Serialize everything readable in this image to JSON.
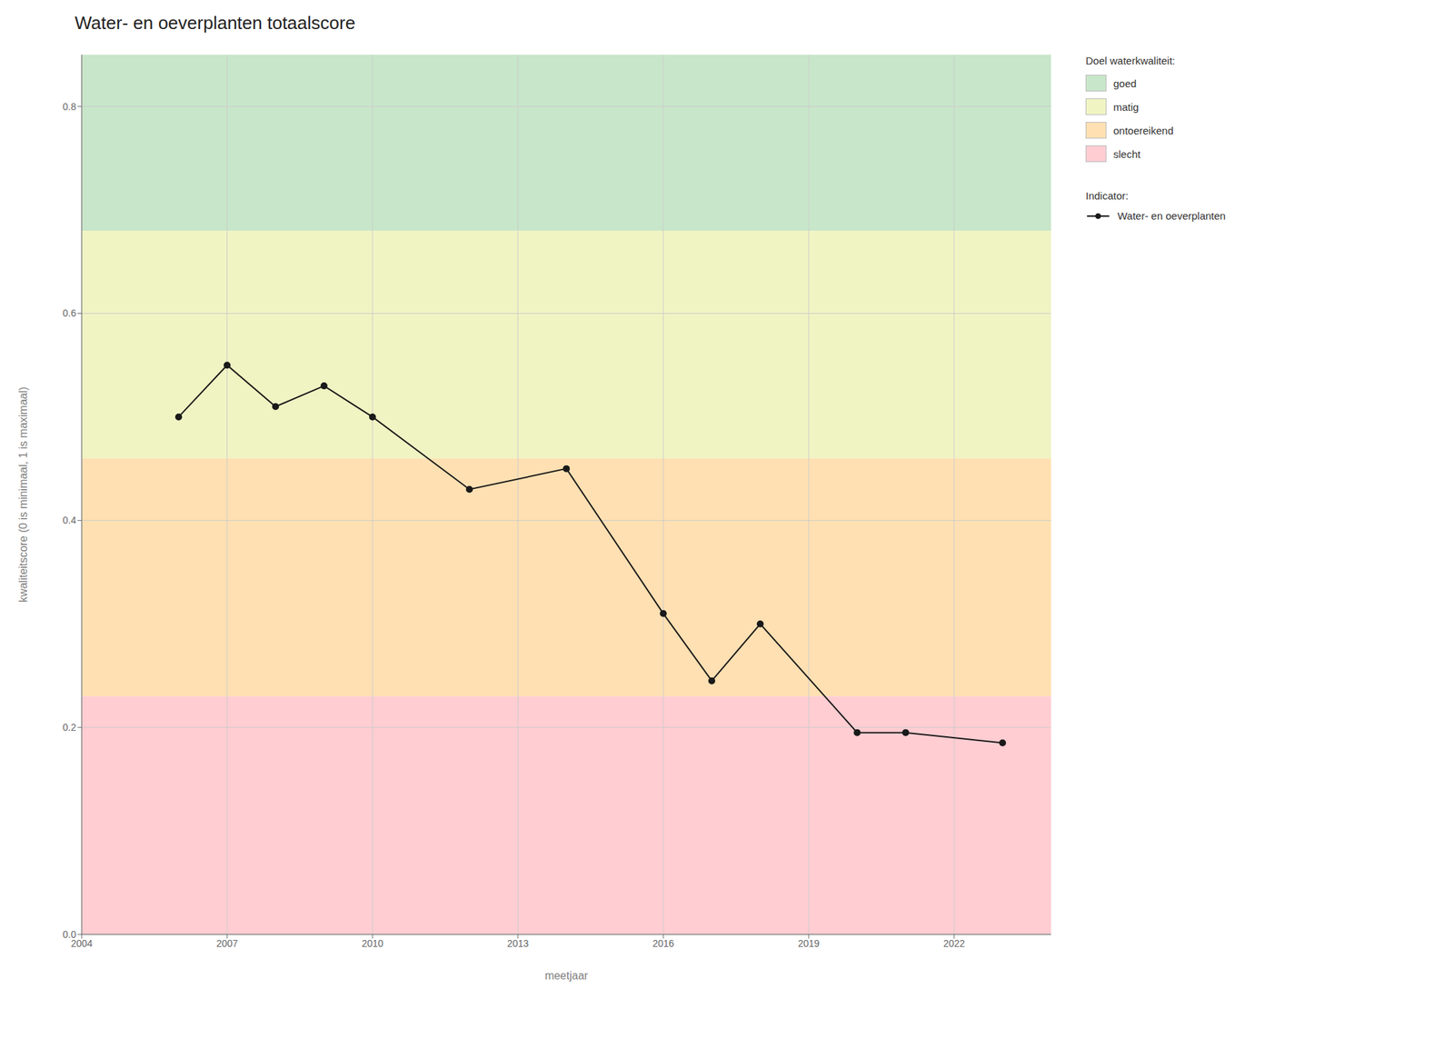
{
  "chart_data": {
    "type": "line",
    "title": "Water- en oeverplanten totaalscore",
    "xlabel": "meetjaar",
    "ylabel": "kwaliteitscore (0 is minimaal, 1 is maximaal)",
    "x": [
      2006,
      2007,
      2008,
      2009,
      2010,
      2012,
      2014,
      2016,
      2017,
      2018,
      2020,
      2021,
      2023
    ],
    "series": [
      {
        "name": "Water- en oeverplanten",
        "color": "#1a1a1a",
        "marker": "circle",
        "values": [
          0.5,
          0.55,
          0.51,
          0.53,
          0.5,
          0.43,
          0.45,
          0.31,
          0.245,
          0.3,
          0.195,
          0.195,
          0.185
        ]
      }
    ],
    "series_title": "Indicator:",
    "xlim": [
      2004,
      2024
    ],
    "xticks": [
      2004,
      2007,
      2010,
      2013,
      2016,
      2019,
      2022
    ],
    "ylim": [
      0.0,
      0.85
    ],
    "yticks": [
      {
        "value": 0,
        "label": "0.0"
      },
      0.2,
      0.4,
      0.6,
      0.8
    ],
    "grid": true,
    "legend": "right",
    "bands_title": "Doel waterkwaliteit:",
    "bands": [
      {
        "name": "goed",
        "ymin": 0.68,
        "ymax": 0.85,
        "color": "#c8e6c9"
      },
      {
        "name": "matig",
        "ymin": 0.46,
        "ymax": 0.68,
        "color": "#f0f4c3"
      },
      {
        "name": "ontoereikend",
        "ymin": 0.23,
        "ymax": 0.46,
        "color": "#ffe0b2"
      },
      {
        "name": "slecht",
        "ymin": 0.0,
        "ymax": 0.23,
        "color": "#ffcdd2"
      }
    ]
  }
}
